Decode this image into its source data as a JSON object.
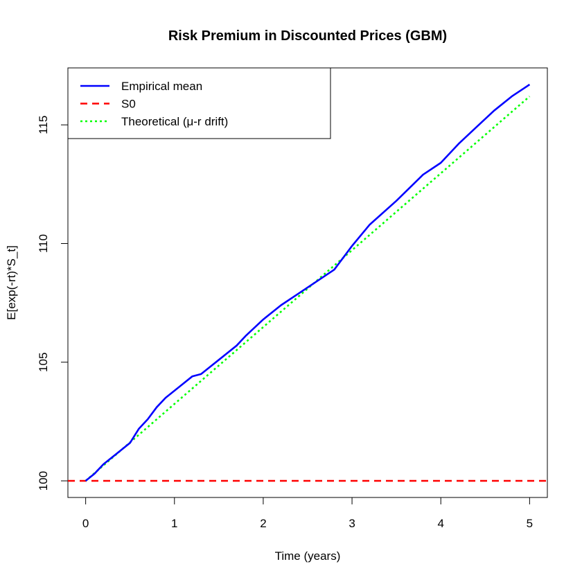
{
  "chart_data": {
    "type": "line",
    "title": "Risk Premium in Discounted Prices (GBM)",
    "xlabel": "Time (years)",
    "ylabel": "E[exp(-rt)*S_t]",
    "xlim": [
      -0.2,
      5.2
    ],
    "ylim": [
      99.3,
      117.4
    ],
    "xticks": [
      0,
      1,
      2,
      3,
      4,
      5
    ],
    "yticks": [
      100,
      105,
      110,
      115
    ],
    "legend_position": "top-left",
    "series": [
      {
        "name": "Empirical mean",
        "color": "#0000ff",
        "style": "solid",
        "x": [
          0,
          0.1,
          0.2,
          0.3,
          0.4,
          0.5,
          0.6,
          0.7,
          0.8,
          0.9,
          1.0,
          1.2,
          1.3,
          1.4,
          1.5,
          1.7,
          1.8,
          2.0,
          2.2,
          2.4,
          2.6,
          2.8,
          3.0,
          3.2,
          3.5,
          3.8,
          4.0,
          4.2,
          4.4,
          4.6,
          4.8,
          5.0
        ],
        "y": [
          100,
          100.3,
          100.7,
          101.0,
          101.3,
          101.6,
          102.2,
          102.6,
          103.1,
          103.5,
          103.8,
          104.4,
          104.5,
          104.8,
          105.1,
          105.7,
          106.1,
          106.8,
          107.4,
          107.9,
          108.4,
          108.9,
          109.9,
          110.8,
          111.8,
          112.9,
          113.4,
          114.2,
          114.9,
          115.6,
          116.2,
          116.7
        ]
      },
      {
        "name": "S0",
        "color": "#ff0000",
        "style": "dashed",
        "x": [
          -0.2,
          5.2
        ],
        "y": [
          100,
          100
        ]
      },
      {
        "name": "Theoretical (μ-r drift)",
        "color": "#00ff00",
        "style": "dotted",
        "x": [
          0,
          5
        ],
        "y": [
          100,
          116.2
        ]
      }
    ]
  }
}
